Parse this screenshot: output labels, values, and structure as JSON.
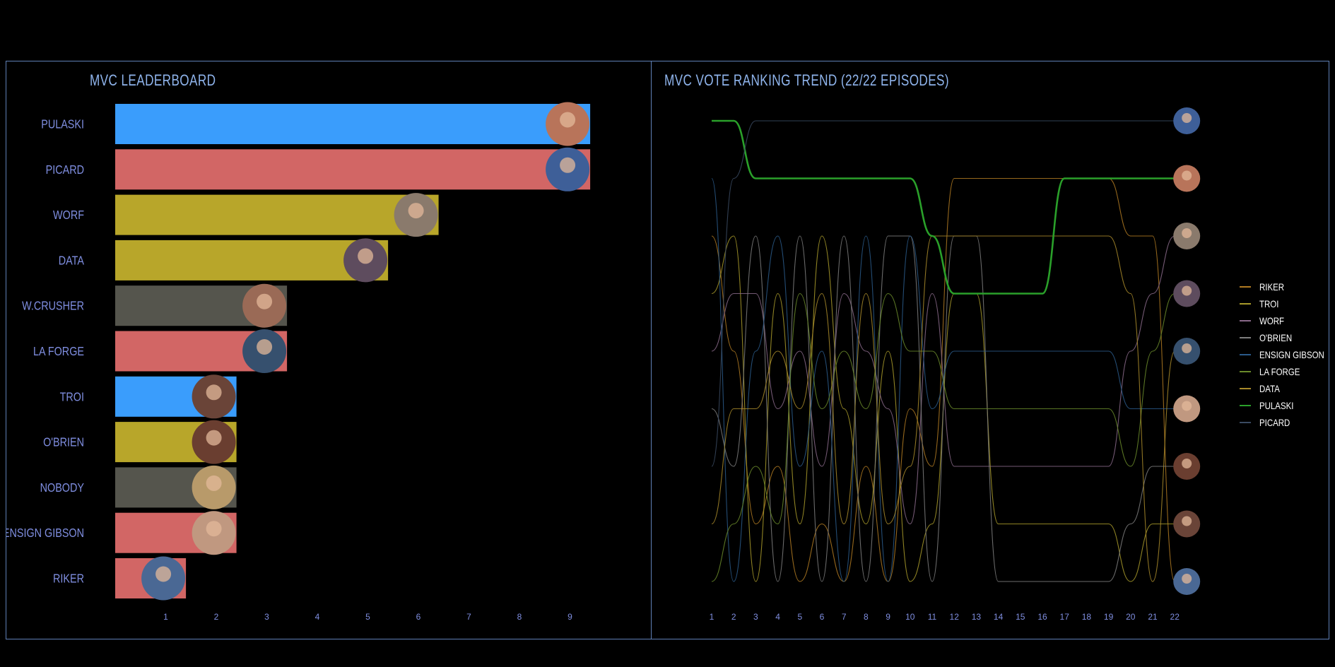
{
  "left": {
    "title": "MVC LEADERBOARD",
    "chart_data": {
      "type": "bar",
      "orientation": "horizontal",
      "title": "MVC LEADERBOARD",
      "categories": [
        "PULASKI",
        "PICARD",
        "WORF",
        "DATA",
        "W.CRUSHER",
        "LA FORGE",
        "TROI",
        "O'BRIEN",
        "NOBODY",
        "ENSIGN GIBSON",
        "RIKER"
      ],
      "values": [
        9.4,
        9.4,
        6.4,
        5.4,
        3.4,
        3.4,
        2.4,
        2.4,
        2.4,
        2.4,
        1.4
      ],
      "bar_colors": [
        "#3a9dfc",
        "#d26665",
        "#b8a62a",
        "#b8a62a",
        "#55554d",
        "#d26665",
        "#3a9dfc",
        "#b8a62a",
        "#55554d",
        "#d26665",
        "#d26665"
      ],
      "avatar_colors": [
        "#b8745a",
        "#3e5f98",
        "#8a7a6c",
        "#5e4c5e",
        "#9a6a56",
        "#36506e",
        "#6a4438",
        "#6a3e30",
        "#b89a6a",
        "#c09880",
        "#4a6894"
      ],
      "x_ticks": [
        "1",
        "2",
        "3",
        "4",
        "5",
        "6",
        "7",
        "8",
        "9"
      ],
      "xlim": [
        0,
        10
      ]
    }
  },
  "right": {
    "title": "MVC VOTE RANKING TREND (22/22 EPISODES)",
    "chart_data": {
      "type": "line",
      "title": "MVC VOTE RANKING TREND (22/22 EPISODES)",
      "x": [
        1,
        2,
        3,
        4,
        5,
        6,
        7,
        8,
        9,
        10,
        11,
        12,
        13,
        14,
        15,
        16,
        17,
        18,
        19,
        20,
        21,
        22
      ],
      "x_ticks": [
        "1",
        "2",
        "3",
        "4",
        "5",
        "6",
        "7",
        "8",
        "9",
        "10",
        "11",
        "12",
        "13",
        "14",
        "15",
        "16",
        "17",
        "18",
        "19",
        "20",
        "21",
        "22"
      ],
      "y_note": "rank (1 = top)",
      "series": [
        {
          "name": "RIKER",
          "color": "#b07a22",
          "ranks": [
            3,
            5,
            8,
            7,
            9,
            8,
            9,
            7,
            9,
            6,
            7,
            2,
            2,
            2,
            2,
            2,
            2,
            2,
            2,
            3,
            3,
            9
          ]
        },
        {
          "name": "TROI",
          "color": "#a89a2a",
          "ranks": [
            4,
            3,
            9,
            4,
            8,
            3,
            6,
            8,
            5,
            9,
            8,
            4,
            4,
            8,
            8,
            8,
            8,
            8,
            8,
            9,
            8,
            8
          ]
        },
        {
          "name": "WORF",
          "color": "#8a6a8a",
          "ranks": [
            5,
            4,
            4,
            6,
            5,
            7,
            4,
            5,
            6,
            8,
            4,
            7,
            7,
            7,
            7,
            7,
            7,
            7,
            7,
            5,
            4,
            3
          ]
        },
        {
          "name": "O'BRIEN",
          "color": "#7e7e7e",
          "ranks": [
            6,
            7,
            3,
            9,
            3,
            9,
            3,
            9,
            3,
            3,
            9,
            3,
            3,
            9,
            9,
            9,
            9,
            9,
            9,
            8,
            7,
            7
          ]
        },
        {
          "name": "ENSIGN GIBSON",
          "color": "#2a5a8a",
          "ranks": [
            2,
            9,
            5,
            3,
            7,
            5,
            9,
            3,
            9,
            3,
            6,
            5,
            5,
            5,
            5,
            5,
            5,
            5,
            5,
            6,
            6,
            6
          ]
        },
        {
          "name": "LA FORGE",
          "color": "#6a8a2a",
          "ranks": [
            9,
            8,
            7,
            8,
            4,
            6,
            5,
            6,
            4,
            5,
            5,
            6,
            6,
            6,
            6,
            6,
            6,
            6,
            6,
            7,
            5,
            4
          ]
        },
        {
          "name": "DATA",
          "color": "#a88a2a",
          "ranks": [
            8,
            6,
            6,
            5,
            6,
            4,
            8,
            4,
            8,
            7,
            3,
            3,
            3,
            3,
            3,
            3,
            3,
            3,
            3,
            4,
            9,
            5
          ]
        },
        {
          "name": "PULASKI",
          "color": "#2aa02a",
          "ranks": [
            1,
            1,
            2,
            2,
            2,
            2,
            2,
            2,
            2,
            2,
            3,
            4,
            4,
            4,
            4,
            4,
            2,
            2,
            2,
            2,
            2,
            2
          ]
        },
        {
          "name": "PICARD",
          "color": "#3a4a62",
          "ranks": [
            7,
            2,
            1,
            1,
            1,
            1,
            1,
            1,
            1,
            1,
            1,
            1,
            1,
            1,
            1,
            1,
            1,
            1,
            1,
            1,
            1,
            1
          ]
        }
      ],
      "end_avatar_colors": [
        "#3e5f98",
        "#b8745a",
        "#8a7a6c",
        "#5e4c5e",
        "#36506e",
        "#c09880",
        "#6a3e30",
        "#6a4438",
        "#4a6894"
      ],
      "legend_position": "right"
    }
  }
}
